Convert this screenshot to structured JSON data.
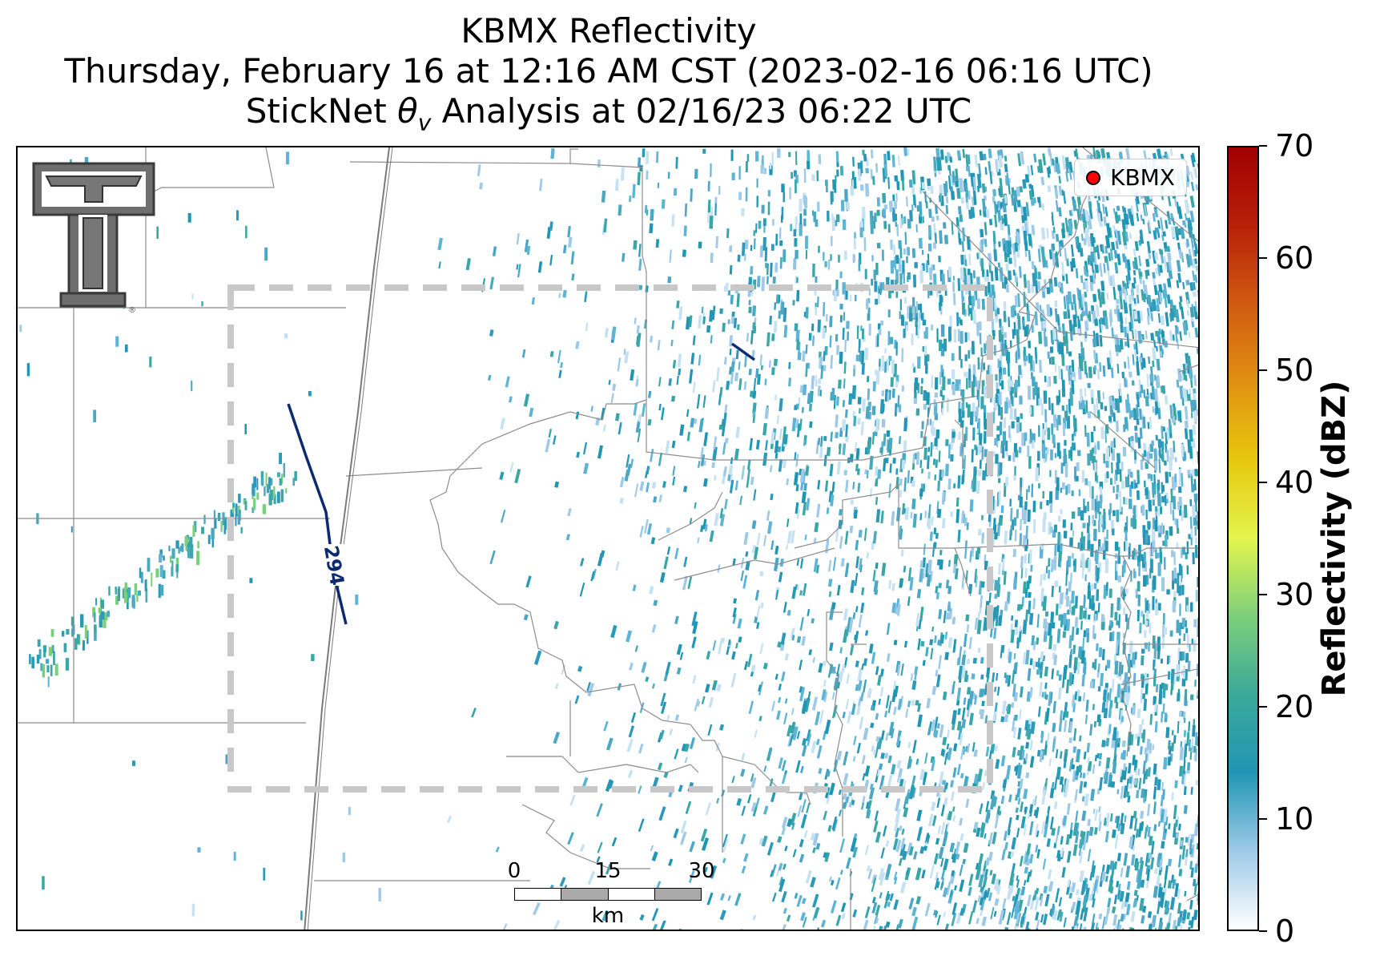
{
  "title": {
    "line1": "KBMX Reflectivity",
    "line2": "Thursday, February 16 at 12:16 AM CST (2023-02-16 06:16 UTC)",
    "line3_prefix": "StickNet ",
    "line3_symbol": "θ",
    "line3_subscript": "v",
    "line3_suffix": " Analysis at 02/16/23 06:22 UTC"
  },
  "legend": {
    "label": "KBMX",
    "marker_color": "#ff0000"
  },
  "logo": {
    "icon": "texas-tech-double-t-logo",
    "mark": "®"
  },
  "contour": {
    "label": "294",
    "color": "#0b2a70"
  },
  "scalebar": {
    "ticks": [
      "0",
      "15",
      "30"
    ],
    "unit": "km"
  },
  "colorbar": {
    "label": "Reflectivity (dBZ)",
    "ticks": [
      "0",
      "10",
      "20",
      "30",
      "40",
      "50",
      "60",
      "70"
    ],
    "min": 0,
    "max": 70,
    "colors": [
      "#ffffff",
      "#9ecae8",
      "#2196b4",
      "#3aa89a",
      "#7ccf7a",
      "#e3f54f",
      "#e8c80e",
      "#e09012",
      "#d05a10",
      "#b82008",
      "#a00000"
    ]
  },
  "analysis_box": {
    "style": "dashed",
    "color": "#c8c8c8"
  },
  "boundaries": {
    "color": "#8c8c8c"
  }
}
